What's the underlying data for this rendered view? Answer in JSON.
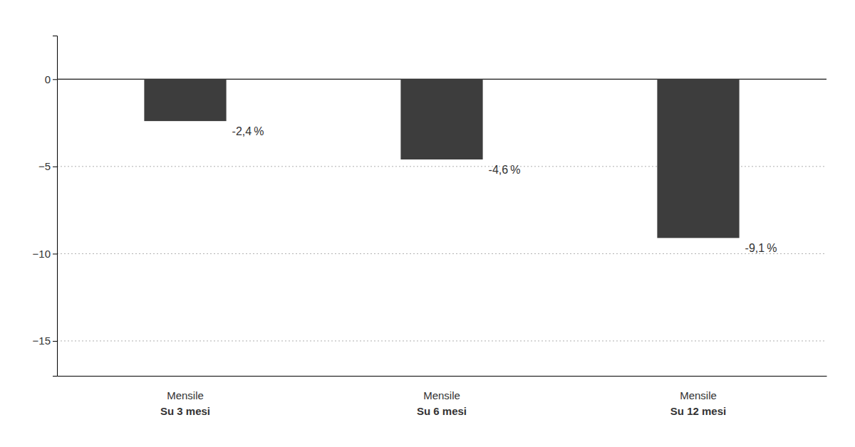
{
  "chart_data": {
    "type": "bar",
    "categories": [
      [
        "Mensile",
        "Su 3 mesi"
      ],
      [
        "Mensile",
        "Su 6 mesi"
      ],
      [
        "Mensile",
        "Su 12 mesi"
      ]
    ],
    "values": [
      -2.4,
      -4.6,
      -9.1
    ],
    "value_labels": [
      "-2,4 %",
      "-4,6 %",
      "-9,1 %"
    ],
    "data_labels": true,
    "color": "#3d3d3d",
    "ylim": [
      -17,
      2.5
    ],
    "yticks": [
      0,
      {
        "value": -5,
        "label": "−5"
      },
      {
        "value": -10,
        "label": "−10"
      },
      {
        "value": -15,
        "label": "−15"
      }
    ],
    "grid": true
  }
}
